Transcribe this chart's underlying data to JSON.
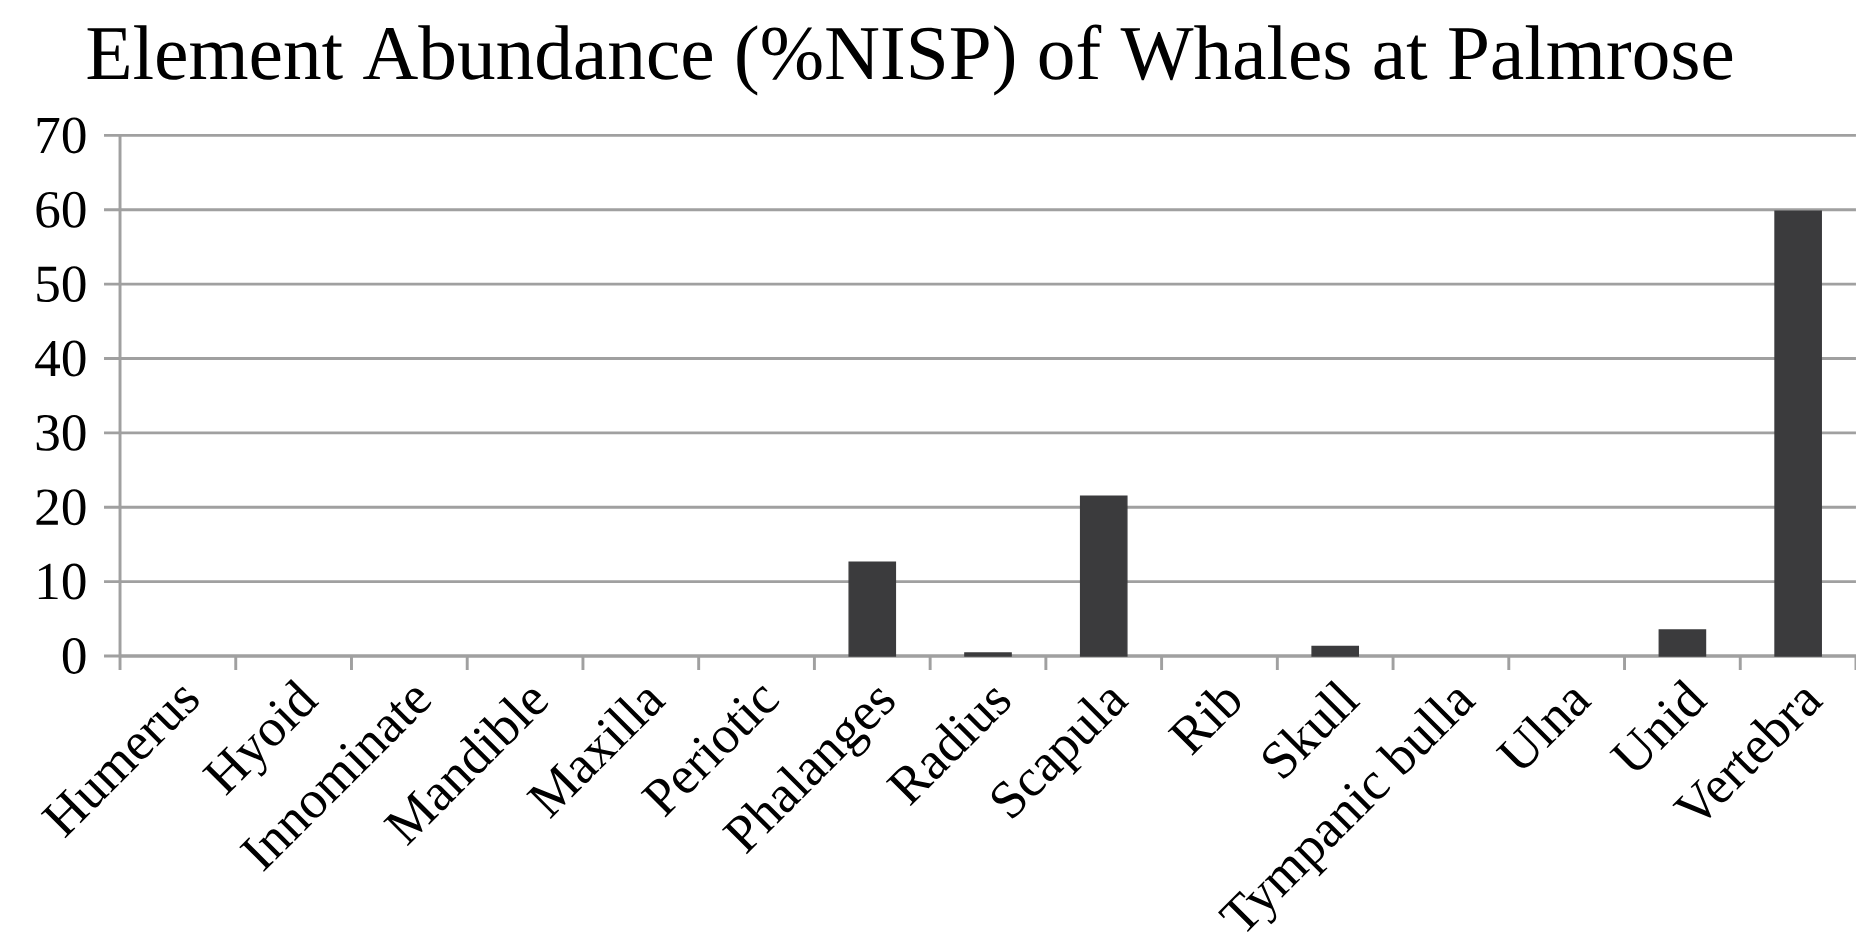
{
  "chart_data": {
    "type": "bar",
    "title": "Element Abundance (%NISP) of Whales at Palmrose",
    "categories": [
      "Humerus",
      "Hyoid",
      "Innominate",
      "Mandible",
      "Maxilla",
      "Periotic",
      "Phalanges",
      "Radius",
      "Scapula",
      "Rib",
      "Skull",
      "Tympanic bulla",
      "Ulna",
      "Unid",
      "Vertebra"
    ],
    "values": [
      0,
      0,
      0,
      0,
      0,
      0,
      12.6,
      0.4,
      21.5,
      0,
      1.3,
      0,
      0,
      3.5,
      59.8
    ],
    "color": "#3b3b3d",
    "ylim": [
      0,
      70
    ],
    "yticks": [
      0,
      10,
      20,
      30,
      40,
      50,
      60,
      70
    ],
    "grid": "y",
    "legend": false
  }
}
